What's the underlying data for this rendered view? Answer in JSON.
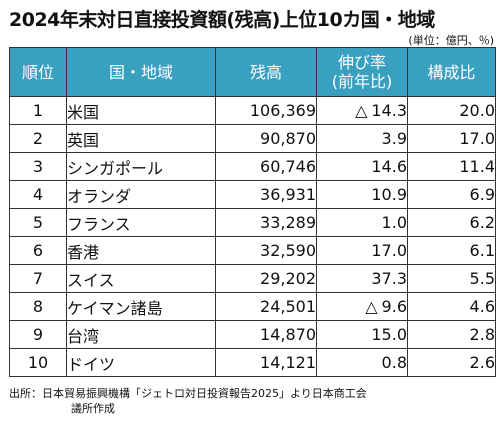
{
  "title": "2024年末対日直接投資額(残高)上位10カ国・地域",
  "unit": "(単位：億円、％)",
  "headers": {
    "rank": "順位",
    "country": "国・地域",
    "balance": "残高",
    "growth_line1": "伸び率",
    "growth_line2": "(前年比)",
    "share": "構成比"
  },
  "rows": [
    {
      "rank": "1",
      "country": "米国",
      "balance": "106,369",
      "growth_sign": "△",
      "growth": "14.3",
      "share": "20.0"
    },
    {
      "rank": "2",
      "country": "英国",
      "balance": "90,870",
      "growth_sign": "",
      "growth": "3.9",
      "share": "17.0"
    },
    {
      "rank": "3",
      "country": "シンガポール",
      "balance": "60,746",
      "growth_sign": "",
      "growth": "14.6",
      "share": "11.4"
    },
    {
      "rank": "4",
      "country": "オランダ",
      "balance": "36,931",
      "growth_sign": "",
      "growth": "10.9",
      "share": "6.9"
    },
    {
      "rank": "5",
      "country": "フランス",
      "balance": "33,289",
      "growth_sign": "",
      "growth": "1.0",
      "share": "6.2"
    },
    {
      "rank": "6",
      "country": "香港",
      "balance": "32,590",
      "growth_sign": "",
      "growth": "17.0",
      "share": "6.1"
    },
    {
      "rank": "7",
      "country": "スイス",
      "balance": "29,202",
      "growth_sign": "",
      "growth": "37.3",
      "share": "5.5"
    },
    {
      "rank": "8",
      "country": "ケイマン諸島",
      "balance": "24,501",
      "growth_sign": "△",
      "growth": "9.6",
      "share": "4.6"
    },
    {
      "rank": "9",
      "country": "台湾",
      "balance": "14,870",
      "growth_sign": "",
      "growth": "15.0",
      "share": "2.8"
    },
    {
      "rank": "10",
      "country": "ドイツ",
      "balance": "14,121",
      "growth_sign": "",
      "growth": "0.8",
      "share": "2.6"
    }
  ],
  "source": {
    "line1": "出所：日本貿易振興機構「ジェトロ対日投資報告2025」より日本商工会",
    "line2": "議所作成"
  },
  "colors": {
    "header_bg": "#3aa0c0",
    "header_text": "#ffffff"
  }
}
